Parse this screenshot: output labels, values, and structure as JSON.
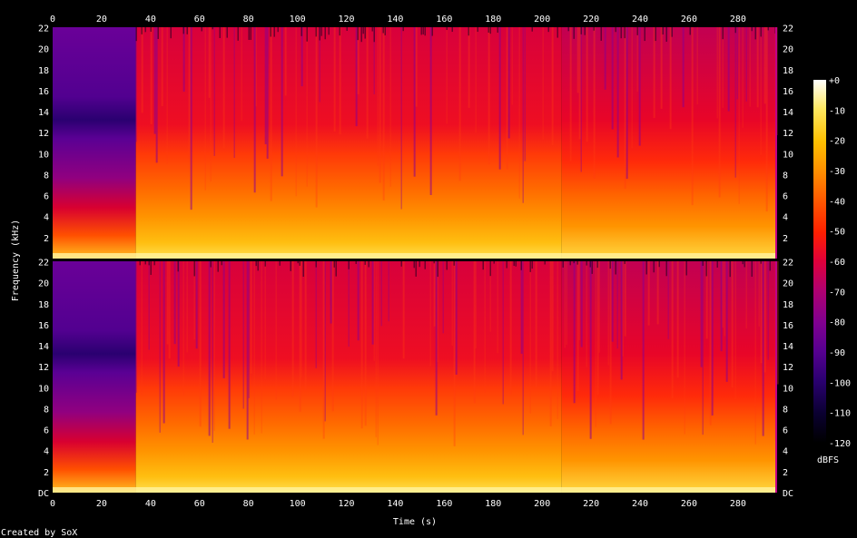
{
  "chart_data": {
    "type": "heatmap",
    "title": "",
    "xlabel": "Time (s)",
    "ylabel": "Frequency (kHz)",
    "xlim": [
      0,
      296
    ],
    "ylim_khz": [
      0,
      22.05
    ],
    "x_ticks": [
      0,
      20,
      40,
      60,
      80,
      100,
      120,
      140,
      160,
      180,
      200,
      220,
      240,
      260,
      280
    ],
    "y_ticks_upper": [
      "22",
      "20",
      "18",
      "16",
      "14",
      "12",
      "10",
      "8",
      "6",
      "4",
      "2"
    ],
    "y_ticks_lower": [
      "22",
      "20",
      "18",
      "16",
      "14",
      "12",
      "10",
      "8",
      "6",
      "4",
      "2",
      "DC"
    ],
    "channels": [
      "Channel 1",
      "Channel 2"
    ],
    "colorbar": {
      "label": "dBFS",
      "range": [
        -120,
        0
      ],
      "ticks": [
        "+0",
        "-10",
        "-20",
        "-30",
        "-40",
        "-50",
        "-60",
        "-70",
        "-80",
        "-90",
        "-100",
        "-110",
        "-120"
      ],
      "palette": [
        "#000000",
        "#0a0030",
        "#2a0070",
        "#550090",
        "#800090",
        "#b00070",
        "#e0003a",
        "#ff2000",
        "#ff5a00",
        "#ff9000",
        "#ffc000",
        "#ffe860",
        "#ffffff"
      ]
    },
    "segments": [
      {
        "start_s": 0,
        "end_s": 34,
        "description_level": "quiet intro, energy below ~6 kHz"
      },
      {
        "start_s": 34,
        "end_s": 208,
        "description_level": "full band, loud"
      },
      {
        "start_s": 208,
        "end_s": 296,
        "description_level": "full band, slightly lower high-frequency energy"
      }
    ]
  },
  "footer": {
    "credit": "Created by SoX"
  }
}
